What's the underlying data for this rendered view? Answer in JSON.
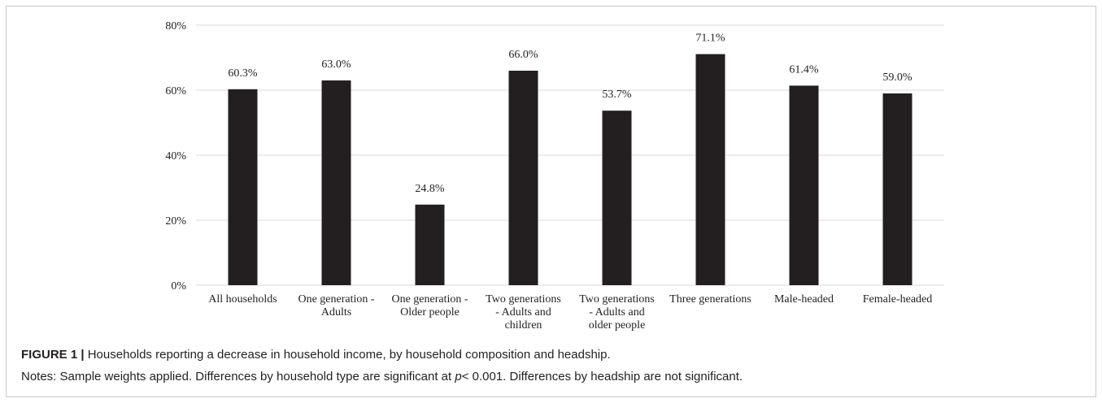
{
  "chart_data": {
    "type": "bar",
    "categories": [
      [
        "All households"
      ],
      [
        "One generation -",
        "Adults"
      ],
      [
        "One generation -",
        "Older people"
      ],
      [
        "Two generations",
        "- Adults and",
        "children"
      ],
      [
        "Two generations",
        "- Adults and",
        "older people"
      ],
      [
        "Three generations"
      ],
      [
        "Male-headed"
      ],
      [
        "Female-headed"
      ]
    ],
    "values": [
      60.3,
      63.0,
      24.8,
      66.0,
      53.7,
      71.1,
      61.4,
      59.0
    ],
    "value_labels": [
      "60.3%",
      "63.0%",
      "24.8%",
      "66.0%",
      "53.7%",
      "71.1%",
      "61.4%",
      "59.0%"
    ],
    "y_ticks": [
      0,
      20,
      40,
      60,
      80
    ],
    "y_tick_labels": [
      "0%",
      "20%",
      "40%",
      "60%",
      "80%"
    ],
    "ylim": [
      0,
      80
    ],
    "grid": true,
    "bar_color": "#231f20",
    "grid_color": "#d9d9d9",
    "title": "",
    "xlabel": "",
    "ylabel": ""
  },
  "caption": {
    "figure_label": "FIGURE 1 |",
    "figure_text": " Households reporting a decrease in household income, by household composition and headship.",
    "notes_before": "Notes: Sample weights applied. Differences by household type are significant at ",
    "notes_p": "p",
    "notes_after": "< 0.001. Differences by headship are not significant."
  }
}
